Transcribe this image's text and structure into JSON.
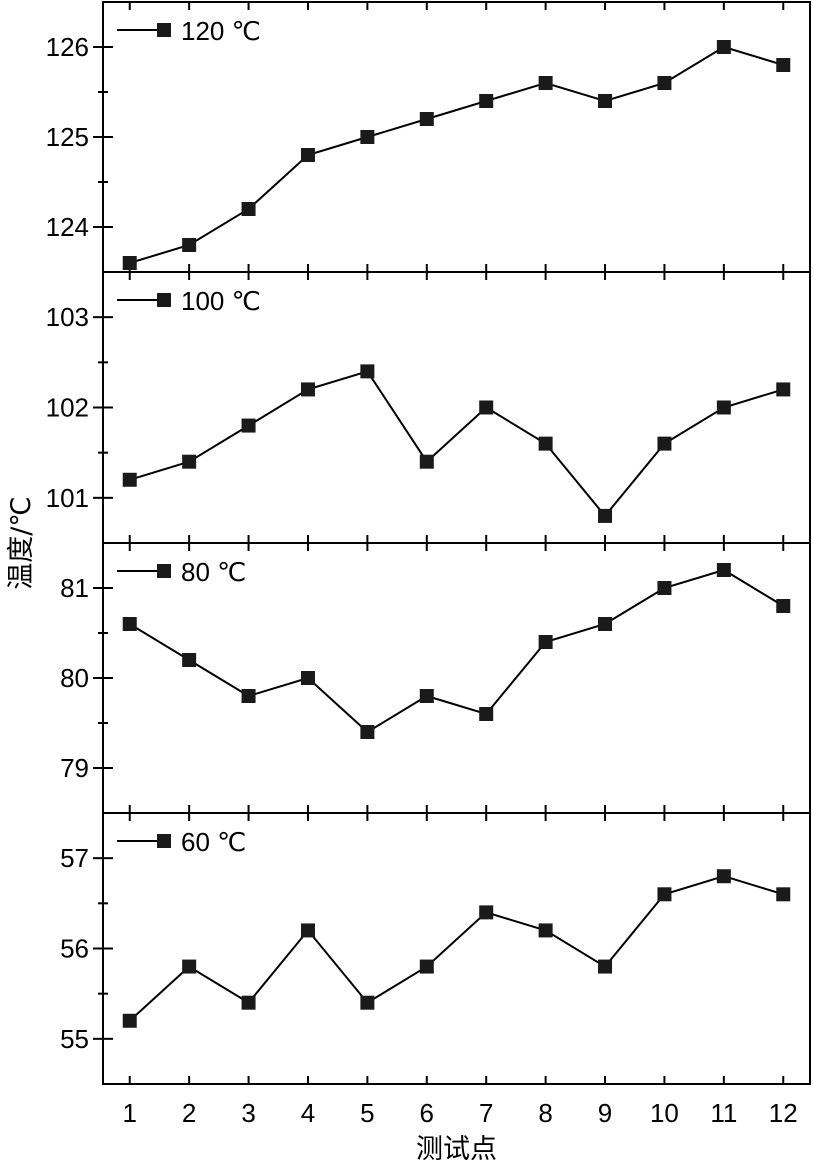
{
  "chart_data": [
    {
      "type": "line",
      "series": [
        {
          "name": "120 ℃",
          "x": [
            1,
            2,
            3,
            4,
            5,
            6,
            7,
            8,
            9,
            10,
            11,
            12
          ],
          "values": [
            123.6,
            123.8,
            124.2,
            124.8,
            125.0,
            125.2,
            125.4,
            125.6,
            125.4,
            125.6,
            126.0,
            125.8
          ]
        }
      ],
      "ylim": [
        123.5,
        126.5
      ],
      "yticks": [
        124,
        125,
        126
      ]
    },
    {
      "type": "line",
      "series": [
        {
          "name": "100 ℃",
          "x": [
            1,
            2,
            3,
            4,
            5,
            6,
            7,
            8,
            9,
            10,
            11,
            12
          ],
          "values": [
            101.2,
            101.4,
            101.8,
            102.2,
            102.4,
            101.4,
            102.0,
            101.6,
            100.8,
            101.6,
            102.0,
            102.2
          ]
        }
      ],
      "ylim": [
        100.5,
        103.5
      ],
      "yticks": [
        101,
        102,
        103
      ]
    },
    {
      "type": "line",
      "series": [
        {
          "name": "80 ℃",
          "x": [
            1,
            2,
            3,
            4,
            5,
            6,
            7,
            8,
            9,
            10,
            11,
            12
          ],
          "values": [
            80.6,
            80.2,
            79.8,
            80.0,
            79.4,
            79.8,
            79.6,
            80.4,
            80.6,
            81.0,
            81.2,
            80.8
          ]
        }
      ],
      "ylim": [
        78.5,
        81.5
      ],
      "yticks": [
        79,
        80,
        81
      ]
    },
    {
      "type": "line",
      "series": [
        {
          "name": "60 ℃",
          "x": [
            1,
            2,
            3,
            4,
            5,
            6,
            7,
            8,
            9,
            10,
            11,
            12
          ],
          "values": [
            55.2,
            55.8,
            55.4,
            56.2,
            55.4,
            55.8,
            56.4,
            56.2,
            55.8,
            56.6,
            56.8,
            56.6
          ]
        }
      ],
      "ylim": [
        54.5,
        57.5
      ],
      "yticks": [
        55,
        56,
        57
      ]
    }
  ],
  "shared": {
    "xlabel": "测试点",
    "ylabel": "温度/℃",
    "xticks": [
      1,
      2,
      3,
      4,
      5,
      6,
      7,
      8,
      9,
      10,
      11,
      12
    ],
    "xlim": [
      0.55,
      12.45
    ]
  }
}
